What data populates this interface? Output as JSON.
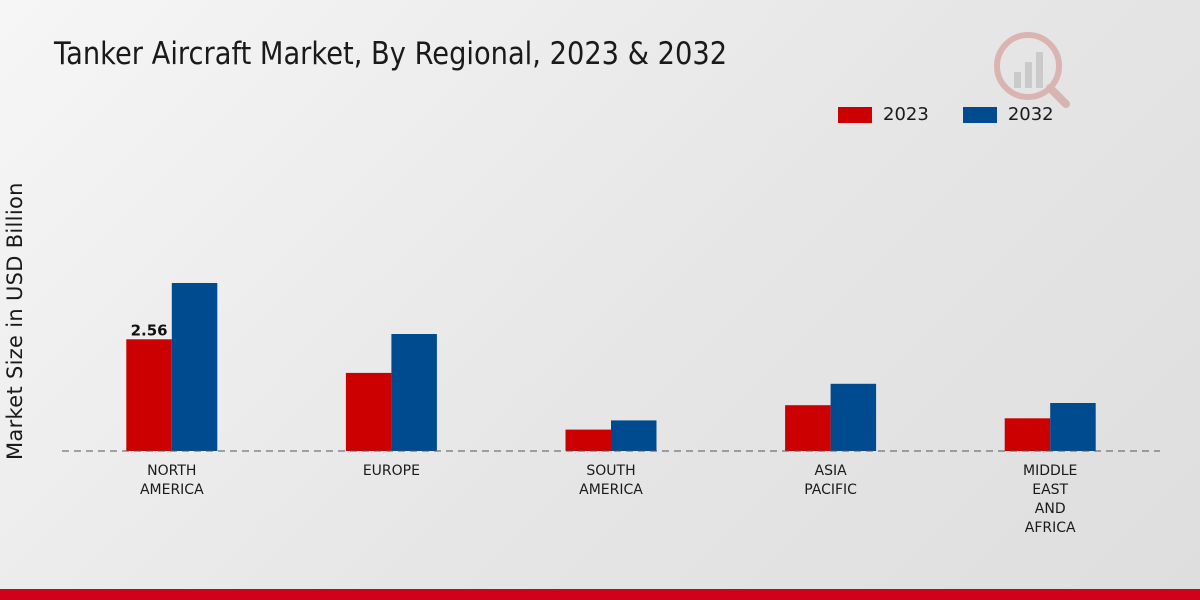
{
  "chart_data": {
    "type": "bar",
    "title": "Tanker Aircraft Market, By Regional, 2023 & 2032",
    "xlabel": "",
    "ylabel": "Market Size in USD Billion",
    "categories": [
      [
        "NORTH",
        "AMERICA"
      ],
      [
        "EUROPE"
      ],
      [
        "SOUTH",
        "AMERICA"
      ],
      [
        "ASIA",
        "PACIFIC"
      ],
      [
        "MIDDLE",
        "EAST",
        "AND",
        "AFRICA"
      ]
    ],
    "series": [
      {
        "name": "2023",
        "color": "#cc0000",
        "values": [
          2.56,
          1.79,
          0.49,
          1.05,
          0.75
        ]
      },
      {
        "name": "2032",
        "color": "#004a8f",
        "values": [
          3.85,
          2.68,
          0.7,
          1.54,
          1.1
        ]
      }
    ],
    "data_labels": [
      {
        "series": 0,
        "index": 0,
        "text": "2.56"
      }
    ],
    "ylim": [
      0,
      8.5
    ],
    "grid": false,
    "legend": "top-right"
  },
  "brand": {
    "accent": "#d0021b"
  }
}
